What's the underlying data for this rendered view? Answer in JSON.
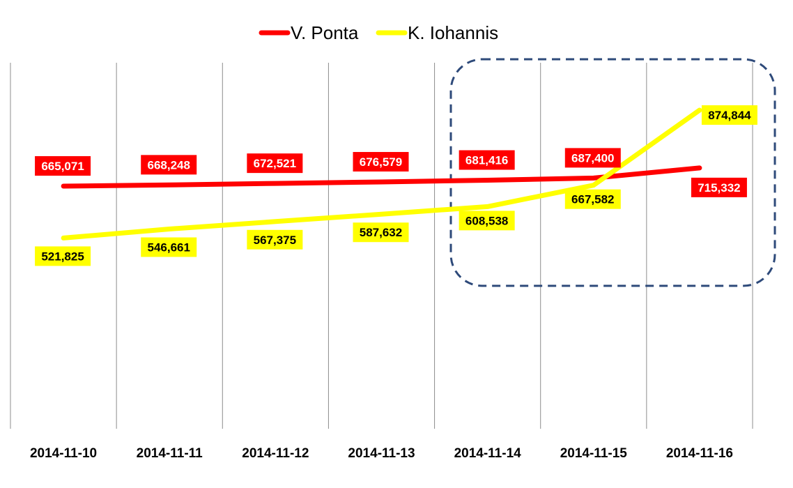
{
  "chart_data": {
    "type": "line",
    "title": "",
    "xlabel": "",
    "ylabel": "",
    "categories": [
      "2014-11-10",
      "2014-11-11",
      "2014-11-12",
      "2014-11-13",
      "2014-11-14",
      "2014-11-15",
      "2014-11-16"
    ],
    "series": [
      {
        "name": "V. Ponta",
        "color": "#ff0000",
        "label_text_color": "#ffffff",
        "values": [
          665071,
          668248,
          672521,
          676579,
          681416,
          687400,
          715332
        ],
        "labels": [
          "665,071",
          "668,248",
          "672,521",
          "676,579",
          "681,416",
          "687,400",
          "715,332"
        ]
      },
      {
        "name": "K. Iohannis",
        "color": "#ffff00",
        "label_text_color": "#000000",
        "values": [
          521825,
          546661,
          567375,
          587632,
          608538,
          667582,
          874844
        ],
        "labels": [
          "521,825",
          "546,661",
          "567,375",
          "587,632",
          "608,538",
          "667,582",
          "874,844"
        ]
      }
    ],
    "grid": "vertical",
    "legend": "top-center",
    "annotation": "dashed rounded box highlighting 2014-11-14 to 2014-11-16",
    "annotation_color": "#2e4a7a"
  }
}
